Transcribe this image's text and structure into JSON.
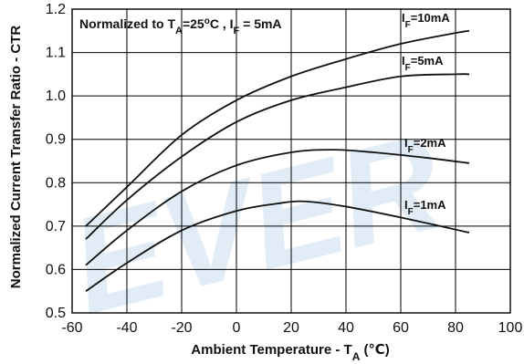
{
  "chart_data": {
    "type": "line",
    "title": "",
    "xlabel": {
      "main": "Ambient Temperature - T",
      "sub": "A",
      "unit": " (℃)"
    },
    "ylabel": "Normalized Current Transfer Ratio - CTR",
    "xlim": [
      -60,
      100
    ],
    "ylim": [
      0.5,
      1.2
    ],
    "xticks": [
      -60,
      -40,
      -20,
      0,
      20,
      40,
      60,
      80,
      100
    ],
    "yticks": [
      0.5,
      0.6,
      0.7,
      0.8,
      0.9,
      1.0,
      1.1,
      1.2
    ],
    "xtick_labels": [
      "-60",
      "-40",
      "-20",
      "0",
      "20",
      "40",
      "60",
      "80",
      "100"
    ],
    "ytick_labels": [
      "0.5",
      "0.6",
      "0.7",
      "0.8",
      "0.9",
      "1.0",
      "1.1",
      "1.2"
    ],
    "grid": true,
    "annotation": {
      "prefix": "Normalized to T",
      "sub1": "A",
      "mid": "=25",
      "sup": "o",
      "mid2": "C , I",
      "sub2": "F",
      "suffix": " = 5mA"
    },
    "watermark": "EVER",
    "series": [
      {
        "name": "IF=10mA",
        "label": {
          "main": "I",
          "sub": "F",
          "rest": "=10mA"
        },
        "x": [
          -55,
          -40,
          -20,
          0,
          20,
          40,
          60,
          80,
          85
        ],
        "y": [
          0.7,
          0.79,
          0.91,
          0.99,
          1.045,
          1.085,
          1.12,
          1.145,
          1.15
        ]
      },
      {
        "name": "IF=5mA",
        "label": {
          "main": "I",
          "sub": "F",
          "rest": "=5mA"
        },
        "x": [
          -55,
          -40,
          -20,
          0,
          20,
          40,
          60,
          80,
          85
        ],
        "y": [
          0.67,
          0.76,
          0.86,
          0.94,
          0.99,
          1.02,
          1.045,
          1.05,
          1.05
        ]
      },
      {
        "name": "IF=2mA",
        "label": {
          "main": "I",
          "sub": "F",
          "rest": "=2mA"
        },
        "x": [
          -55,
          -40,
          -20,
          0,
          20,
          35,
          50,
          70,
          85
        ],
        "y": [
          0.61,
          0.69,
          0.78,
          0.84,
          0.87,
          0.876,
          0.87,
          0.857,
          0.845
        ]
      },
      {
        "name": "IF=1mA",
        "label": {
          "main": "I",
          "sub": "F",
          "rest": "=1mA"
        },
        "x": [
          -55,
          -40,
          -20,
          0,
          15,
          25,
          40,
          60,
          85
        ],
        "y": [
          0.55,
          0.615,
          0.69,
          0.735,
          0.752,
          0.757,
          0.745,
          0.72,
          0.685
        ]
      }
    ]
  }
}
